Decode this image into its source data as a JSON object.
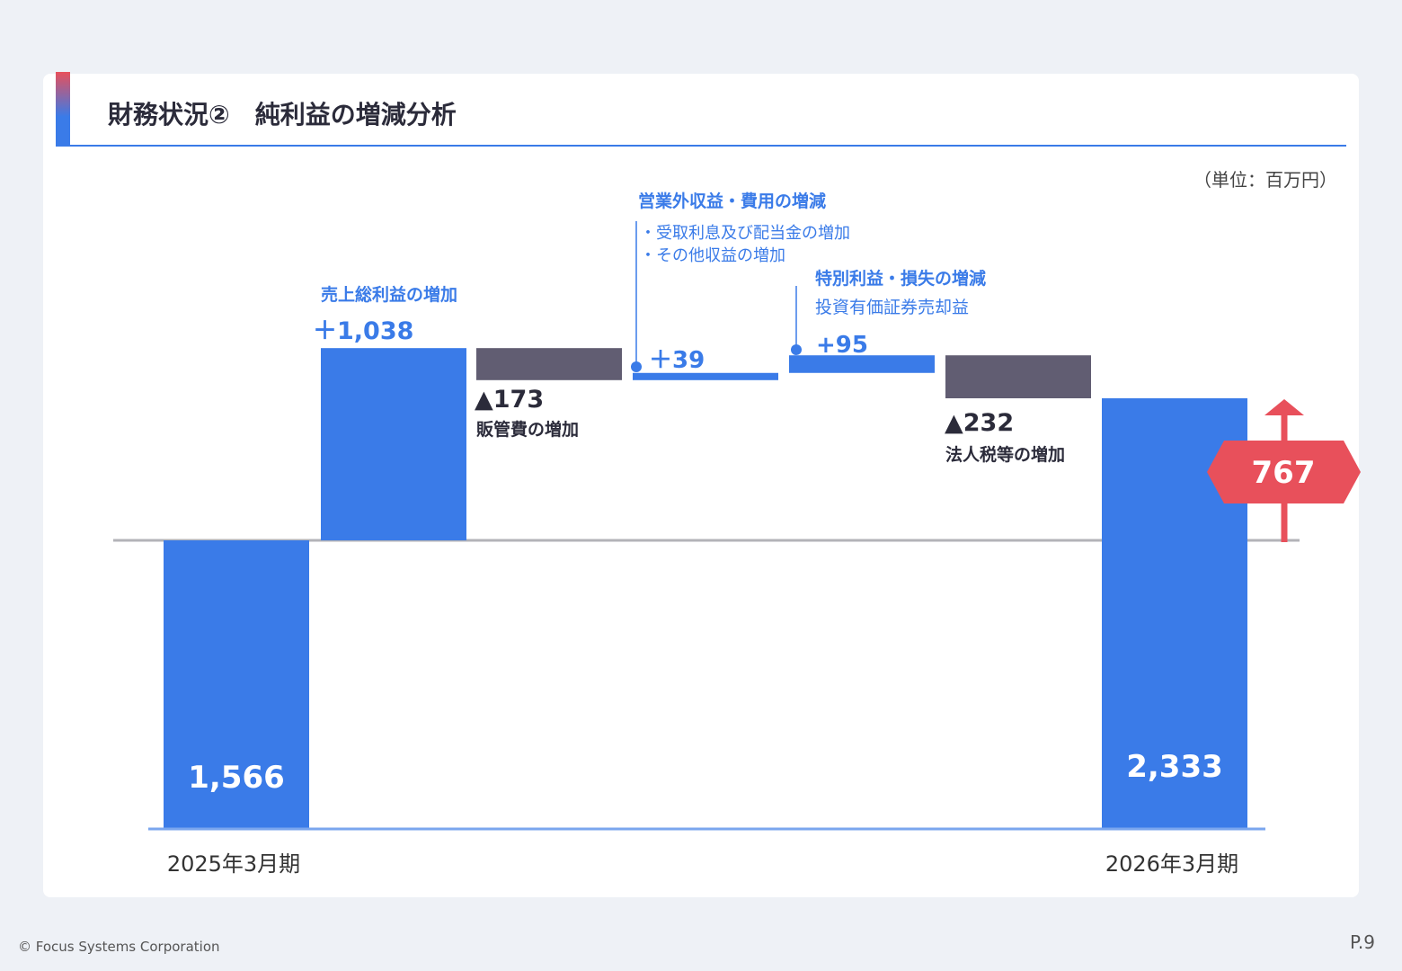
{
  "title": "財務状況②　純利益の増減分析",
  "unit_label": "（単位：百万円）",
  "footer": {
    "copyright": "© Focus Systems Corporation",
    "page": "P.9"
  },
  "colors": {
    "positive": "#3a7be8",
    "negative": "#615d72",
    "accent": "#e8505b",
    "baseline": "#b3b3b8"
  },
  "chart_data": {
    "type": "waterfall",
    "steps": [
      {
        "kind": "total",
        "category": "2025年3月期",
        "value": 1566,
        "value_label": "1,566"
      },
      {
        "kind": "delta",
        "value": 1038,
        "value_label": "＋1,038",
        "heading": "売上総利益の増加"
      },
      {
        "kind": "delta",
        "value": -173,
        "value_label": "▲173",
        "caption": "販管費の増加"
      },
      {
        "kind": "delta",
        "value": 39,
        "value_label": "＋39",
        "heading": "営業外収益・費用の増減",
        "notes": [
          "・受取利息及び配当金の増加",
          "・その他収益の増加"
        ]
      },
      {
        "kind": "delta",
        "value": 95,
        "value_label": "+95",
        "heading": "特別利益・損失の増減",
        "notes": [
          "投資有価証券売却益"
        ]
      },
      {
        "kind": "delta",
        "value": -232,
        "value_label": "▲232",
        "caption": "法人税等の増加"
      },
      {
        "kind": "total",
        "category": "2026年3月期",
        "value": 2333,
        "value_label": "2,333"
      }
    ],
    "change_badge": {
      "value": 767,
      "label": "767"
    }
  }
}
